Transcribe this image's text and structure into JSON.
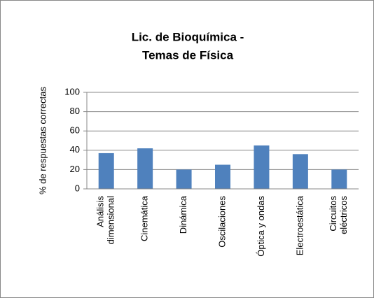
{
  "chart_data": {
    "type": "bar",
    "title": [
      "Lic. de Bioquímica -",
      "Temas de Física"
    ],
    "y_label": "% de respuestas correctas",
    "categories": [
      [
        "Análisis",
        "dimensional"
      ],
      [
        "Cinemática"
      ],
      [
        "Dinámica"
      ],
      [
        "Oscilaciones"
      ],
      [
        "Óptica y ondas"
      ],
      [
        "Electroestática"
      ],
      [
        "Circuitos",
        "eléctricos"
      ]
    ],
    "values": [
      37,
      42,
      20,
      25,
      45,
      36,
      20
    ],
    "color": "#4f81bd",
    "ylim": [
      0,
      100
    ],
    "yticks": [
      0,
      20,
      40,
      60,
      80,
      100
    ],
    "grid": true
  }
}
